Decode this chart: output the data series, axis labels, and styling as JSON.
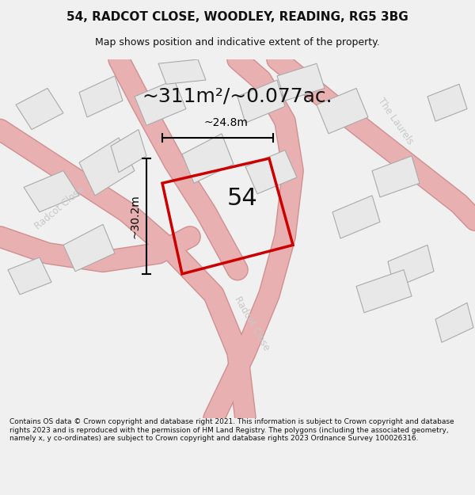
{
  "title": "54, RADCOT CLOSE, WOODLEY, READING, RG5 3BG",
  "subtitle": "Map shows position and indicative extent of the property.",
  "area_text": "~311m²/~0.077ac.",
  "number_label": "54",
  "dim_width_label": "~24.8m",
  "dim_height_label": "~30.2m",
  "footer": "Contains OS data © Crown copyright and database right 2021. This information is subject to Crown copyright and database rights 2023 and is reproduced with the permission of HM Land Registry. The polygons (including the associated geometry, namely x, y co-ordinates) are subject to Crown copyright and database rights 2023 Ordnance Survey 100026316.",
  "bg_color": "#f5f5f5",
  "map_bg": "#ffffff",
  "plot_outline_color": "#cc0000",
  "dim_line_color": "#000000",
  "road_label_color": "#c0c0c0",
  "title_color": "#111111",
  "footer_color": "#111111",
  "building_fill": "#e8e8e8",
  "building_edge": "#aaaaaa",
  "road_line_color": "#e8b0b0",
  "road_fill": "#f8f8f8"
}
